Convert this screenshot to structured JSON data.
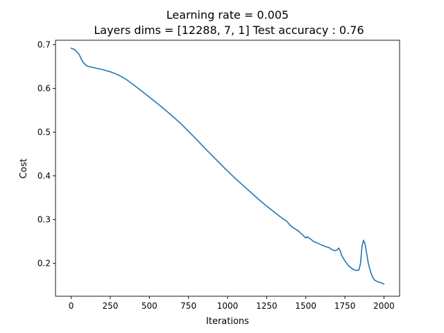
{
  "chart_data": {
    "type": "line",
    "title": "Learning rate = 0.005",
    "subtitle": "Layers dims = [12288, 7, 1] Test accuracy : 0.76",
    "xlabel": "Iterations",
    "ylabel": "Cost",
    "xlim": [
      -100,
      2100
    ],
    "ylim": [
      0.125,
      0.71
    ],
    "x_ticks": [
      0,
      250,
      500,
      750,
      1000,
      1250,
      1500,
      1750,
      2000
    ],
    "x_tick_labels": [
      "0",
      "250",
      "500",
      "750",
      "1000",
      "1250",
      "1500",
      "1750",
      "2000"
    ],
    "y_ticks": [
      0.2,
      0.3,
      0.4,
      0.5,
      0.6,
      0.7
    ],
    "y_tick_labels": [
      "0.2",
      "0.3",
      "0.4",
      "0.5",
      "0.6",
      "0.7"
    ],
    "grid": false,
    "line_color": "#1f77b4",
    "series": [
      {
        "name": "",
        "x": [
          0,
          25,
          50,
          75,
          100,
          150,
          200,
          250,
          300,
          350,
          400,
          450,
          500,
          550,
          600,
          650,
          700,
          750,
          800,
          850,
          900,
          950,
          1000,
          1050,
          1100,
          1150,
          1200,
          1250,
          1300,
          1350,
          1380,
          1400,
          1430,
          1450,
          1480,
          1500,
          1510,
          1520,
          1530,
          1550,
          1570,
          1590,
          1610,
          1630,
          1650,
          1670,
          1690,
          1700,
          1710,
          1720,
          1730,
          1750,
          1770,
          1790,
          1800,
          1820,
          1840,
          1850,
          1860,
          1870,
          1880,
          1890,
          1900,
          1910,
          1920,
          1930,
          1940,
          1960,
          1980,
          2000
        ],
        "y": [
          0.692,
          0.688,
          0.678,
          0.66,
          0.651,
          0.647,
          0.643,
          0.638,
          0.631,
          0.621,
          0.608,
          0.594,
          0.58,
          0.566,
          0.551,
          0.536,
          0.52,
          0.502,
          0.484,
          0.465,
          0.447,
          0.429,
          0.411,
          0.394,
          0.378,
          0.362,
          0.346,
          0.331,
          0.317,
          0.303,
          0.296,
          0.287,
          0.279,
          0.275,
          0.265,
          0.258,
          0.261,
          0.258,
          0.256,
          0.25,
          0.247,
          0.244,
          0.241,
          0.238,
          0.236,
          0.231,
          0.229,
          0.231,
          0.235,
          0.229,
          0.218,
          0.206,
          0.196,
          0.19,
          0.187,
          0.184,
          0.185,
          0.2,
          0.24,
          0.253,
          0.243,
          0.222,
          0.2,
          0.187,
          0.175,
          0.167,
          0.162,
          0.158,
          0.156,
          0.153
        ]
      }
    ]
  }
}
